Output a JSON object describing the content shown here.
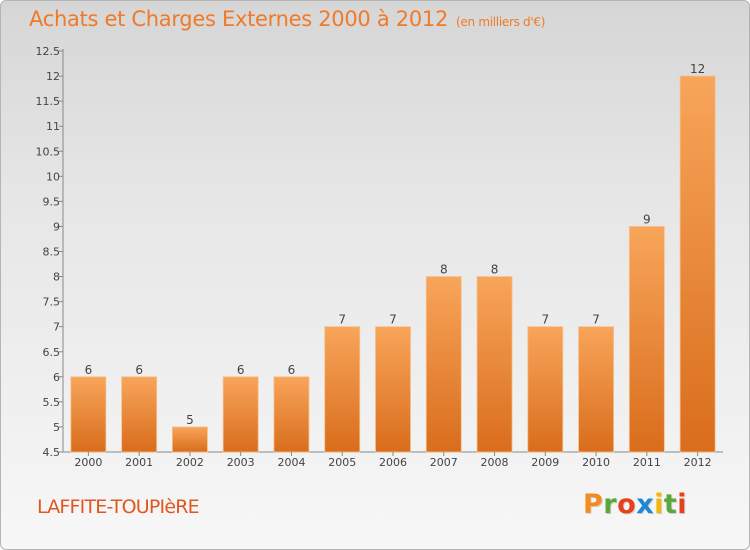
{
  "chart_data": {
    "type": "bar",
    "title": "Achats et Charges Externes 2000 à 2012",
    "subtitle": "(en milliers d'€)",
    "categories": [
      "2000",
      "2001",
      "2002",
      "2003",
      "2004",
      "2005",
      "2006",
      "2007",
      "2008",
      "2009",
      "2010",
      "2011",
      "2012"
    ],
    "values": [
      6,
      6,
      5,
      6,
      6,
      7,
      7,
      8,
      8,
      7,
      7,
      9,
      12
    ],
    "ylim": [
      4.5,
      12.5
    ],
    "yticks": [
      "4.5",
      "5",
      "5.5",
      "6",
      "6.5",
      "7",
      "7.5",
      "8",
      "8.5",
      "9",
      "9.5",
      "10",
      "10.5",
      "11",
      "11.5",
      "12",
      "12.5"
    ],
    "grid": false,
    "bar_color_top": "#f8a55a",
    "bar_color_bottom": "#d96d1c"
  },
  "commune": "LAFFITE-TOUPIèRE",
  "logo": {
    "letters": [
      "P",
      "r",
      "o",
      "x",
      "i",
      "t",
      "i"
    ],
    "colors": [
      "#f28c1e",
      "#5aa83a",
      "#e8401c",
      "#1e88d8",
      "#f5b60a",
      "#5aa83a",
      "#e8401c"
    ]
  }
}
